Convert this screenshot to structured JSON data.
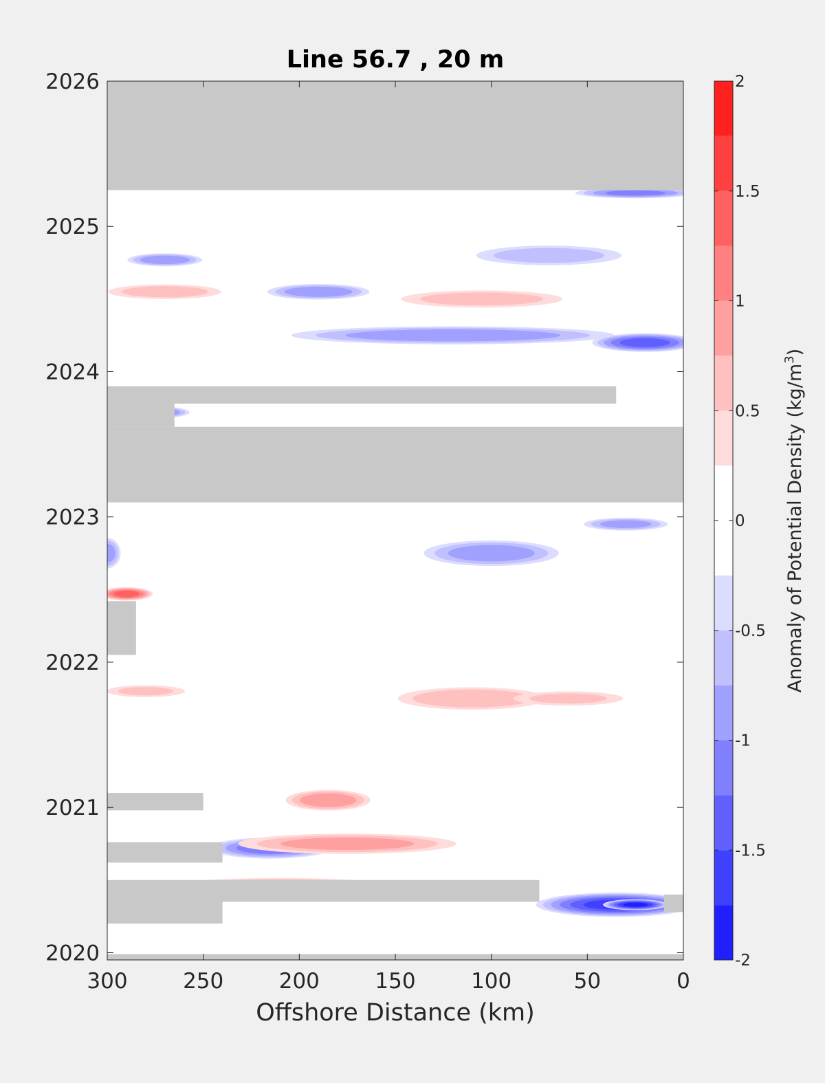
{
  "chart_data": {
    "type": "heatmap",
    "title": "Line 56.7 , 20 m",
    "xlabel": "Offshore Distance (km)",
    "ylabel": "",
    "x_reversed": true,
    "xlim": [
      0,
      300
    ],
    "ylim": [
      2019.95,
      2026
    ],
    "x_ticks": [
      300,
      250,
      200,
      150,
      100,
      50,
      0
    ],
    "y_ticks": [
      2020,
      2021,
      2022,
      2023,
      2024,
      2025,
      2026
    ],
    "colorbar": {
      "label": "Anomaly of Potential Density",
      "unit_base": "(kg/m",
      "unit_exp": "3",
      "unit_close": ")",
      "range": [
        -2,
        2
      ],
      "tick_values": [
        -2,
        -1.5,
        -1,
        -0.5,
        0,
        0.5,
        1,
        1.5,
        2
      ],
      "tick_labels": [
        "-2",
        "-1.5",
        "-1",
        "-0.5",
        "0",
        "0.5",
        "1",
        "1.5",
        "2"
      ],
      "levels": [
        -2,
        -1.75,
        -1.5,
        -1.25,
        -1,
        -0.75,
        -0.5,
        -0.25,
        0.25,
        0.5,
        0.75,
        1,
        1.25,
        1.5,
        1.75,
        2
      ],
      "colors": [
        "#0000ff",
        "#2020ff",
        "#4040ff",
        "#6060ff",
        "#8080ff",
        "#a0a0ff",
        "#c0c0ff",
        "#dcdcff",
        "#ffffff",
        "#ffdcdc",
        "#ffc0c0",
        "#ffa0a0",
        "#ff8080",
        "#ff6060",
        "#ff4040",
        "#ff2020",
        "#ff0000"
      ]
    },
    "no_data_color": "#c8c8c8",
    "no_data_regions": [
      {
        "x": [
          0,
          300
        ],
        "y": [
          2025.25,
          2026
        ]
      },
      {
        "x": [
          0,
          300
        ],
        "y": [
          2023.1,
          2023.62
        ]
      },
      {
        "x": [
          35,
          300
        ],
        "y": [
          2023.78,
          2023.9
        ]
      },
      {
        "x": [
          265,
          300
        ],
        "y": [
          2023.62,
          2023.78
        ]
      },
      {
        "x": [
          285,
          300
        ],
        "y": [
          2022.05,
          2022.42
        ]
      },
      {
        "x": [
          250,
          300
        ],
        "y": [
          2020.98,
          2021.1
        ]
      },
      {
        "x": [
          240,
          300
        ],
        "y": [
          2020.62,
          2020.76
        ]
      },
      {
        "x": [
          75,
          300
        ],
        "y": [
          2020.35,
          2020.5
        ]
      },
      {
        "x": [
          240,
          300
        ],
        "y": [
          2020.2,
          2020.35
        ]
      },
      {
        "x": [
          0,
          10
        ],
        "y": [
          2020.28,
          2020.4
        ]
      },
      {
        "x": [
          0,
          300
        ],
        "y": [
          2019.95,
          2019.99
        ]
      }
    ],
    "anomaly_blobs": [
      {
        "x": 210,
        "y": 2020.45,
        "rx": 70,
        "ry": 0.07,
        "v": 1.2
      },
      {
        "x": 210,
        "y": 2020.43,
        "rx": 30,
        "ry": 0.04,
        "v": 1.4
      },
      {
        "x": 35,
        "y": 2020.33,
        "rx": 45,
        "ry": 0.09,
        "v": -1.5
      },
      {
        "x": 25,
        "y": 2020.33,
        "rx": 18,
        "ry": 0.04,
        "v": -1.75
      },
      {
        "x": 215,
        "y": 2020.72,
        "rx": 35,
        "ry": 0.08,
        "v": -1.1
      },
      {
        "x": 175,
        "y": 2020.75,
        "rx": 65,
        "ry": 0.08,
        "v": 0.8
      },
      {
        "x": 185,
        "y": 2021.05,
        "rx": 25,
        "ry": 0.08,
        "v": 0.9
      },
      {
        "x": 110,
        "y": 2021.75,
        "rx": 45,
        "ry": 0.09,
        "v": 0.7
      },
      {
        "x": 280,
        "y": 2021.8,
        "rx": 25,
        "ry": 0.05,
        "v": 0.5
      },
      {
        "x": 60,
        "y": 2021.75,
        "rx": 35,
        "ry": 0.06,
        "v": 0.5
      },
      {
        "x": 290,
        "y": 2022.47,
        "rx": 15,
        "ry": 0.05,
        "v": 1.3
      },
      {
        "x": 100,
        "y": 2022.75,
        "rx": 40,
        "ry": 0.1,
        "v": -0.85
      },
      {
        "x": 300,
        "y": 2022.75,
        "rx": 8,
        "ry": 0.12,
        "v": -0.8
      },
      {
        "x": 30,
        "y": 2022.95,
        "rx": 25,
        "ry": 0.05,
        "v": -0.8
      },
      {
        "x": 280,
        "y": 2023.72,
        "rx": 25,
        "ry": 0.05,
        "v": -1.3
      },
      {
        "x": 120,
        "y": 2024.25,
        "rx": 95,
        "ry": 0.07,
        "v": -0.9
      },
      {
        "x": 20,
        "y": 2024.2,
        "rx": 30,
        "ry": 0.07,
        "v": -1.3
      },
      {
        "x": 190,
        "y": 2024.55,
        "rx": 30,
        "ry": 0.06,
        "v": -0.9
      },
      {
        "x": 105,
        "y": 2024.5,
        "rx": 50,
        "ry": 0.07,
        "v": 0.6
      },
      {
        "x": 270,
        "y": 2024.55,
        "rx": 35,
        "ry": 0.06,
        "v": 0.6
      },
      {
        "x": 270,
        "y": 2024.77,
        "rx": 22,
        "ry": 0.05,
        "v": -0.9
      },
      {
        "x": 70,
        "y": 2024.8,
        "rx": 45,
        "ry": 0.08,
        "v": -0.6
      },
      {
        "x": 25,
        "y": 2025.23,
        "rx": 35,
        "ry": 0.04,
        "v": -1.0
      }
    ]
  }
}
